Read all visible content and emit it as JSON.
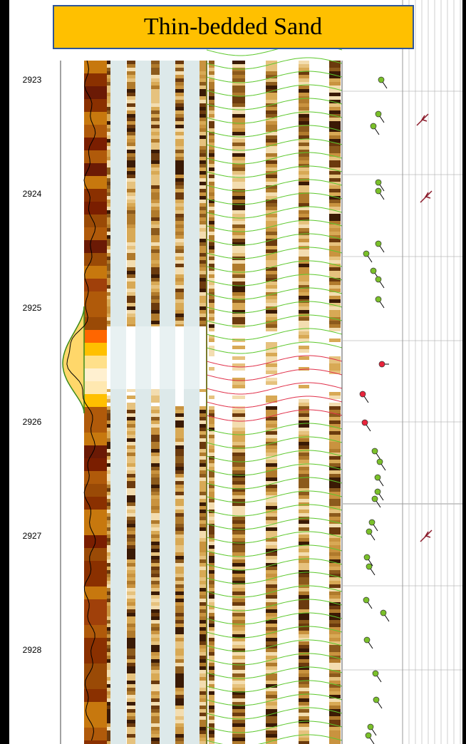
{
  "title": "Thin-bedded Sand",
  "depth_track": {
    "labels": [
      2923,
      2924,
      2925,
      2926,
      2927,
      2928
    ]
  }
}
